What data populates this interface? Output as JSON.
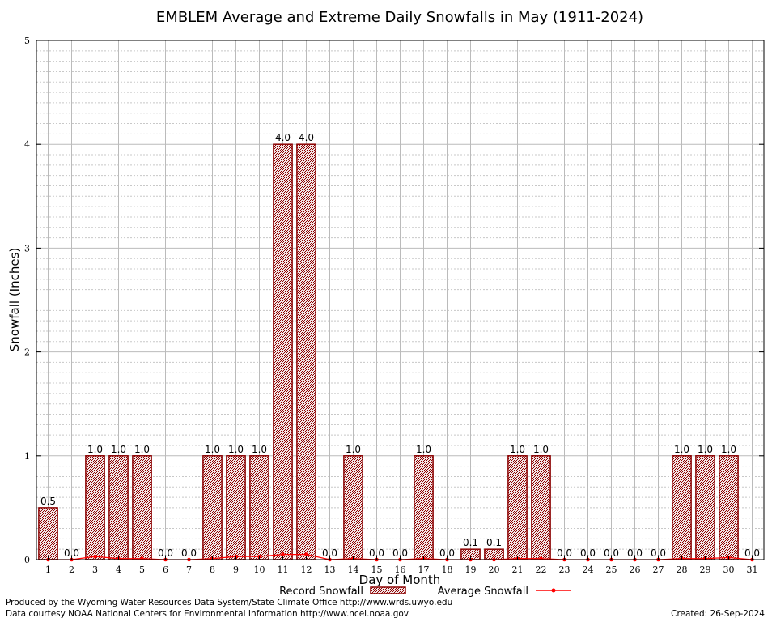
{
  "chart_data": {
    "type": "bar",
    "title": "EMBLEM Average and Extreme Daily Snowfalls in May (1911-2024)",
    "xlabel": "Day of Month",
    "ylabel": "Snowfall (Inches)",
    "ylim": [
      0,
      5
    ],
    "yticks": [
      "0",
      "1",
      "2",
      "3",
      "4",
      "5"
    ],
    "categories": [
      "1",
      "2",
      "3",
      "4",
      "5",
      "6",
      "7",
      "8",
      "9",
      "10",
      "11",
      "12",
      "13",
      "14",
      "15",
      "16",
      "17",
      "18",
      "19",
      "20",
      "21",
      "22",
      "23",
      "24",
      "25",
      "26",
      "27",
      "28",
      "29",
      "30",
      "31"
    ],
    "grid": true,
    "legend_position": "bottom",
    "colors": {
      "bar_fill": "#c8a6a6",
      "bar_edge": "#8b0000",
      "line": "#ff0000"
    },
    "series": [
      {
        "name": "Record Snowfall",
        "type": "bar",
        "values": [
          0.5,
          0.0,
          1.0,
          1.0,
          1.0,
          0.0,
          0.0,
          1.0,
          1.0,
          1.0,
          4.0,
          4.0,
          0.0,
          1.0,
          0.0,
          0.0,
          1.0,
          0.0,
          0.1,
          0.1,
          1.0,
          1.0,
          0.0,
          0.0,
          0.0,
          0.0,
          0.0,
          1.0,
          1.0,
          1.0,
          0.0
        ],
        "labels": [
          "0.5",
          "0.0",
          "1.0",
          "1.0",
          "1.0",
          "0.0",
          "0.0",
          "1.0",
          "1.0",
          "1.0",
          "4.0",
          "4.0",
          "0.0",
          "1.0",
          "0.0",
          "0.0",
          "1.0",
          "0.0",
          "0.1",
          "0.1",
          "1.0",
          "1.0",
          "0.0",
          "0.0",
          "0.0",
          "0.0",
          "0.0",
          "1.0",
          "1.0",
          "1.0",
          "0.0"
        ]
      },
      {
        "name": "Average Snowfall",
        "type": "line",
        "values": [
          0.0,
          0.0,
          0.03,
          0.01,
          0.01,
          0.0,
          0.0,
          0.01,
          0.03,
          0.03,
          0.05,
          0.05,
          0.0,
          0.01,
          0.0,
          0.0,
          0.01,
          0.0,
          0.0,
          0.0,
          0.01,
          0.01,
          0.0,
          0.0,
          0.0,
          0.0,
          0.0,
          0.01,
          0.01,
          0.02,
          0.0
        ]
      }
    ]
  },
  "footer": {
    "producer": "Produced by the Wyoming Water Resources Data System/State Climate Office http://www.wrds.uwyo.edu",
    "courtesy": "Data courtesy NOAA National Centers for Environmental Information http://www.ncei.noaa.gov",
    "created": "Created: 26-Sep-2024"
  }
}
